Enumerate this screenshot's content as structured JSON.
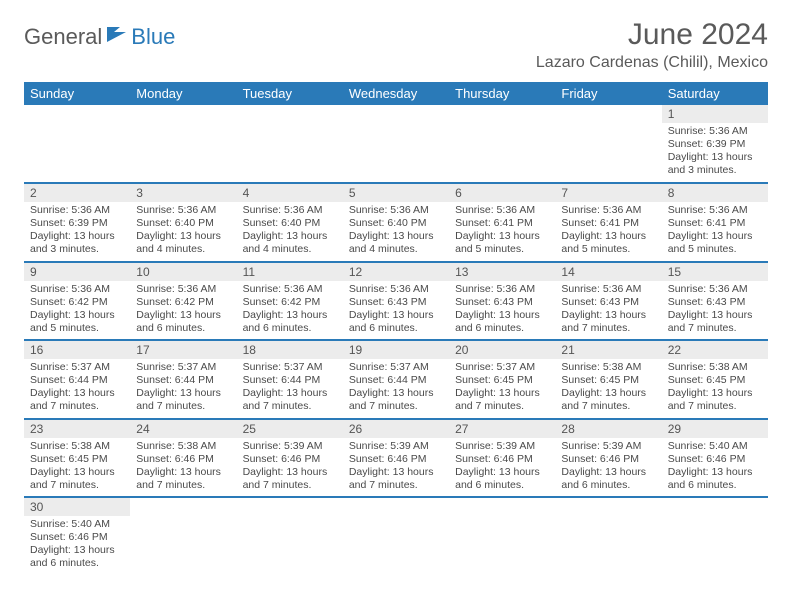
{
  "brand": {
    "part1": "General",
    "part2": "Blue"
  },
  "title": "June 2024",
  "location": "Lazaro Cardenas (Chilil), Mexico",
  "colors": {
    "header_bg": "#2a7ab8",
    "header_text": "#ffffff",
    "daynum_bg": "#ececec",
    "row_border": "#2a7ab8",
    "text": "#4a4a4a",
    "title_text": "#5a5a5a"
  },
  "day_names": [
    "Sunday",
    "Monday",
    "Tuesday",
    "Wednesday",
    "Thursday",
    "Friday",
    "Saturday"
  ],
  "weeks": [
    [
      null,
      null,
      null,
      null,
      null,
      null,
      {
        "n": "1",
        "sr": "Sunrise: 5:36 AM",
        "ss": "Sunset: 6:39 PM",
        "dl": "Daylight: 13 hours and 3 minutes."
      }
    ],
    [
      {
        "n": "2",
        "sr": "Sunrise: 5:36 AM",
        "ss": "Sunset: 6:39 PM",
        "dl": "Daylight: 13 hours and 3 minutes."
      },
      {
        "n": "3",
        "sr": "Sunrise: 5:36 AM",
        "ss": "Sunset: 6:40 PM",
        "dl": "Daylight: 13 hours and 4 minutes."
      },
      {
        "n": "4",
        "sr": "Sunrise: 5:36 AM",
        "ss": "Sunset: 6:40 PM",
        "dl": "Daylight: 13 hours and 4 minutes."
      },
      {
        "n": "5",
        "sr": "Sunrise: 5:36 AM",
        "ss": "Sunset: 6:40 PM",
        "dl": "Daylight: 13 hours and 4 minutes."
      },
      {
        "n": "6",
        "sr": "Sunrise: 5:36 AM",
        "ss": "Sunset: 6:41 PM",
        "dl": "Daylight: 13 hours and 5 minutes."
      },
      {
        "n": "7",
        "sr": "Sunrise: 5:36 AM",
        "ss": "Sunset: 6:41 PM",
        "dl": "Daylight: 13 hours and 5 minutes."
      },
      {
        "n": "8",
        "sr": "Sunrise: 5:36 AM",
        "ss": "Sunset: 6:41 PM",
        "dl": "Daylight: 13 hours and 5 minutes."
      }
    ],
    [
      {
        "n": "9",
        "sr": "Sunrise: 5:36 AM",
        "ss": "Sunset: 6:42 PM",
        "dl": "Daylight: 13 hours and 5 minutes."
      },
      {
        "n": "10",
        "sr": "Sunrise: 5:36 AM",
        "ss": "Sunset: 6:42 PM",
        "dl": "Daylight: 13 hours and 6 minutes."
      },
      {
        "n": "11",
        "sr": "Sunrise: 5:36 AM",
        "ss": "Sunset: 6:42 PM",
        "dl": "Daylight: 13 hours and 6 minutes."
      },
      {
        "n": "12",
        "sr": "Sunrise: 5:36 AM",
        "ss": "Sunset: 6:43 PM",
        "dl": "Daylight: 13 hours and 6 minutes."
      },
      {
        "n": "13",
        "sr": "Sunrise: 5:36 AM",
        "ss": "Sunset: 6:43 PM",
        "dl": "Daylight: 13 hours and 6 minutes."
      },
      {
        "n": "14",
        "sr": "Sunrise: 5:36 AM",
        "ss": "Sunset: 6:43 PM",
        "dl": "Daylight: 13 hours and 7 minutes."
      },
      {
        "n": "15",
        "sr": "Sunrise: 5:36 AM",
        "ss": "Sunset: 6:43 PM",
        "dl": "Daylight: 13 hours and 7 minutes."
      }
    ],
    [
      {
        "n": "16",
        "sr": "Sunrise: 5:37 AM",
        "ss": "Sunset: 6:44 PM",
        "dl": "Daylight: 13 hours and 7 minutes."
      },
      {
        "n": "17",
        "sr": "Sunrise: 5:37 AM",
        "ss": "Sunset: 6:44 PM",
        "dl": "Daylight: 13 hours and 7 minutes."
      },
      {
        "n": "18",
        "sr": "Sunrise: 5:37 AM",
        "ss": "Sunset: 6:44 PM",
        "dl": "Daylight: 13 hours and 7 minutes."
      },
      {
        "n": "19",
        "sr": "Sunrise: 5:37 AM",
        "ss": "Sunset: 6:44 PM",
        "dl": "Daylight: 13 hours and 7 minutes."
      },
      {
        "n": "20",
        "sr": "Sunrise: 5:37 AM",
        "ss": "Sunset: 6:45 PM",
        "dl": "Daylight: 13 hours and 7 minutes."
      },
      {
        "n": "21",
        "sr": "Sunrise: 5:38 AM",
        "ss": "Sunset: 6:45 PM",
        "dl": "Daylight: 13 hours and 7 minutes."
      },
      {
        "n": "22",
        "sr": "Sunrise: 5:38 AM",
        "ss": "Sunset: 6:45 PM",
        "dl": "Daylight: 13 hours and 7 minutes."
      }
    ],
    [
      {
        "n": "23",
        "sr": "Sunrise: 5:38 AM",
        "ss": "Sunset: 6:45 PM",
        "dl": "Daylight: 13 hours and 7 minutes."
      },
      {
        "n": "24",
        "sr": "Sunrise: 5:38 AM",
        "ss": "Sunset: 6:46 PM",
        "dl": "Daylight: 13 hours and 7 minutes."
      },
      {
        "n": "25",
        "sr": "Sunrise: 5:39 AM",
        "ss": "Sunset: 6:46 PM",
        "dl": "Daylight: 13 hours and 7 minutes."
      },
      {
        "n": "26",
        "sr": "Sunrise: 5:39 AM",
        "ss": "Sunset: 6:46 PM",
        "dl": "Daylight: 13 hours and 7 minutes."
      },
      {
        "n": "27",
        "sr": "Sunrise: 5:39 AM",
        "ss": "Sunset: 6:46 PM",
        "dl": "Daylight: 13 hours and 6 minutes."
      },
      {
        "n": "28",
        "sr": "Sunrise: 5:39 AM",
        "ss": "Sunset: 6:46 PM",
        "dl": "Daylight: 13 hours and 6 minutes."
      },
      {
        "n": "29",
        "sr": "Sunrise: 5:40 AM",
        "ss": "Sunset: 6:46 PM",
        "dl": "Daylight: 13 hours and 6 minutes."
      }
    ],
    [
      {
        "n": "30",
        "sr": "Sunrise: 5:40 AM",
        "ss": "Sunset: 6:46 PM",
        "dl": "Daylight: 13 hours and 6 minutes."
      },
      null,
      null,
      null,
      null,
      null,
      null
    ]
  ]
}
